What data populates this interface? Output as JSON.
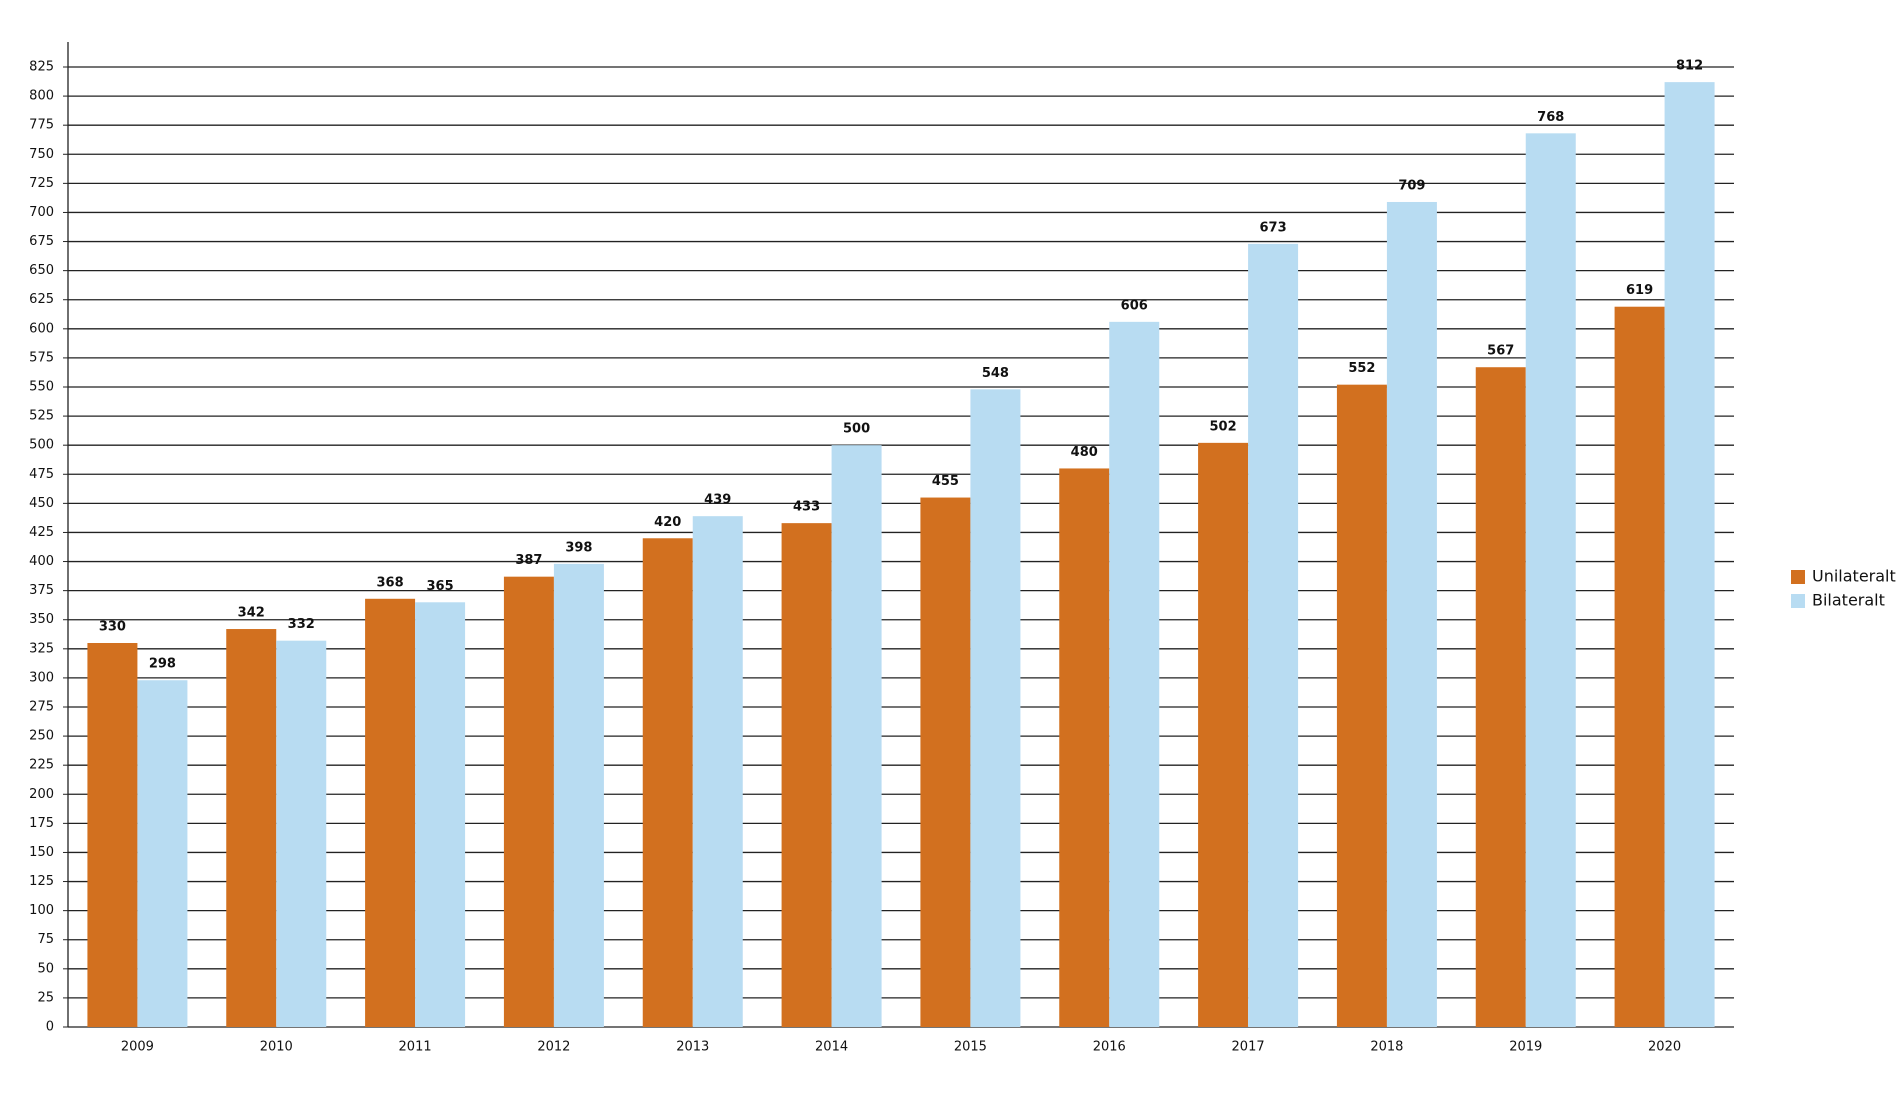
{
  "chart_data": {
    "type": "bar",
    "categories": [
      "2009",
      "2010",
      "2011",
      "2012",
      "2013",
      "2014",
      "2015",
      "2016",
      "2017",
      "2018",
      "2019",
      "2020"
    ],
    "series": [
      {
        "name": "Unilateralt",
        "color": "#d2701f",
        "values": [
          330,
          342,
          368,
          387,
          420,
          433,
          455,
          480,
          502,
          552,
          567,
          619
        ]
      },
      {
        "name": "Bilateralt",
        "color": "#b8dcf2",
        "values": [
          298,
          332,
          365,
          398,
          439,
          500,
          548,
          606,
          673,
          709,
          768,
          812
        ]
      }
    ],
    "ylim": [
      0,
      825
    ],
    "yticks": [
      0,
      25,
      50,
      75,
      100,
      125,
      150,
      175,
      200,
      225,
      250,
      275,
      300,
      325,
      350,
      375,
      400,
      425,
      450,
      475,
      500,
      525,
      550,
      575,
      600,
      625,
      650,
      675,
      700,
      725,
      750,
      775,
      800,
      825
    ],
    "grid": true,
    "legend": "right"
  }
}
